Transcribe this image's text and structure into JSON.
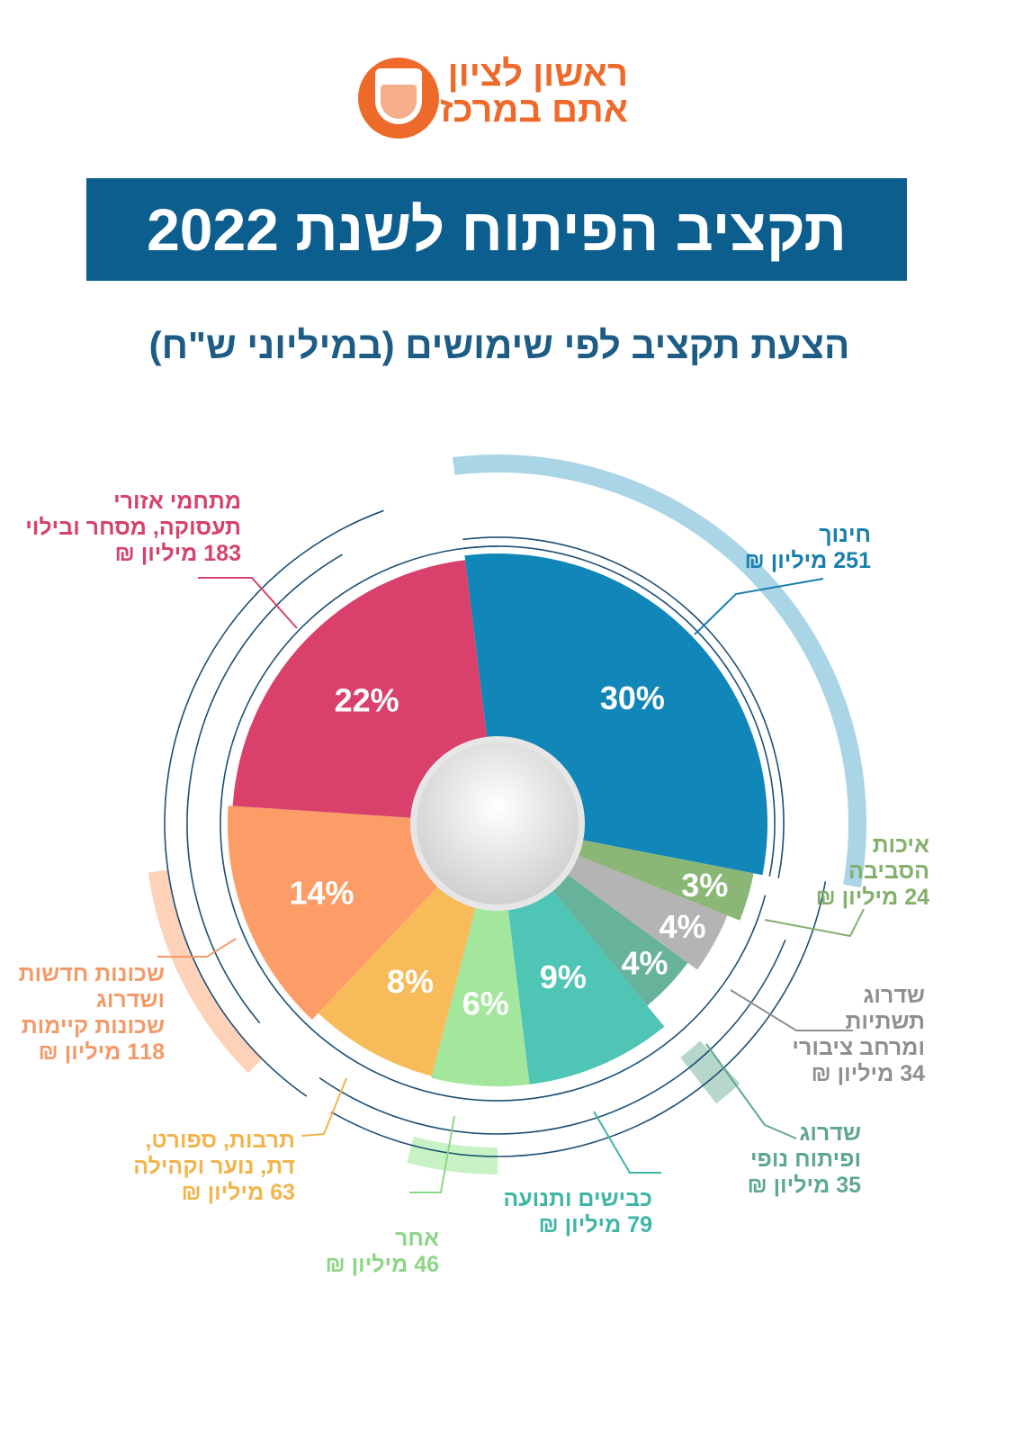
{
  "logo": {
    "line1": "ראשון לציון",
    "line2": "אתם במרכז",
    "crest_text": "ראשון-לציון"
  },
  "header": {
    "title": "תקציב הפיתוח לשנת 2022"
  },
  "subtitle": "הצעת תקציב לפי שימושים (במיליוני ש\"ח)",
  "chart_data": {
    "type": "pie",
    "title": "הצעת תקציב לפי שימושים (במיליוני ש\"ח)",
    "unit": "מיליון ₪",
    "categories": [
      "חינוך",
      "איכות הסביבה",
      "שדרוג תשתיות ומרחב ציבורי",
      "שדרוג ופיתוח נופי",
      "כבישים ותנועה",
      "אחר",
      "תרבות, ספורט, דת, נוער וקהילה",
      "שכונות חדשות ושדרוג שכונות קיימות",
      "מתחמי אזורי תעסוקה, מסחר ובילוי"
    ],
    "values": [
      30,
      3,
      4,
      4,
      9,
      6,
      8,
      14,
      22
    ],
    "amounts": [
      251,
      24,
      34,
      35,
      79,
      46,
      63,
      118,
      183
    ],
    "pct_labels": [
      "30%",
      "3%",
      "4%",
      "4%",
      "9%",
      "6%",
      "8%",
      "14%",
      "22%"
    ],
    "colors": [
      "#1186b8",
      "#8ab676",
      "#b4b4b4",
      "#66b29a",
      "#4ec5b5",
      "#a3e79d",
      "#f8bb5a",
      "#fc9d68",
      "#d9406c"
    ],
    "labels": [
      {
        "lines": [
          "חינוך"
        ],
        "amount": "251 מיליון ₪",
        "color": "#1a7fae"
      },
      {
        "lines": [
          "איכות",
          "הסביבה"
        ],
        "amount": "24 מיליון ₪",
        "color": "#84b06c"
      },
      {
        "lines": [
          "שדרוג",
          "תשתיות",
          "ומרחב ציבורי"
        ],
        "amount": "34 מיליון ₪",
        "color": "#8f8f8f"
      },
      {
        "lines": [
          "שדרוג",
          "ופיתוח נופי"
        ],
        "amount": "35 מיליון ₪",
        "color": "#5ea88e"
      },
      {
        "lines": [
          "כבישים ותנועה"
        ],
        "amount": "79 מיליון ₪",
        "color": "#3fb5a6"
      },
      {
        "lines": [
          "אחר"
        ],
        "amount": "46 מיליון ₪",
        "color": "#8cd686"
      },
      {
        "lines": [
          "תרבות, ספורט,",
          "דת, נוער וקהילה"
        ],
        "amount": "63 מיליון ₪",
        "color": "#f2b54e"
      },
      {
        "lines": [
          "שכונות חדשות",
          "ושדרוג",
          "שכונות קיימות"
        ],
        "amount": "118 מיליון ₪",
        "color": "#f39a69"
      },
      {
        "lines": [
          "מתחמי אזורי",
          "תעסוקה, מסחר ובילוי"
        ],
        "amount": "183 מיליון ₪",
        "color": "#d5426c"
      }
    ]
  }
}
